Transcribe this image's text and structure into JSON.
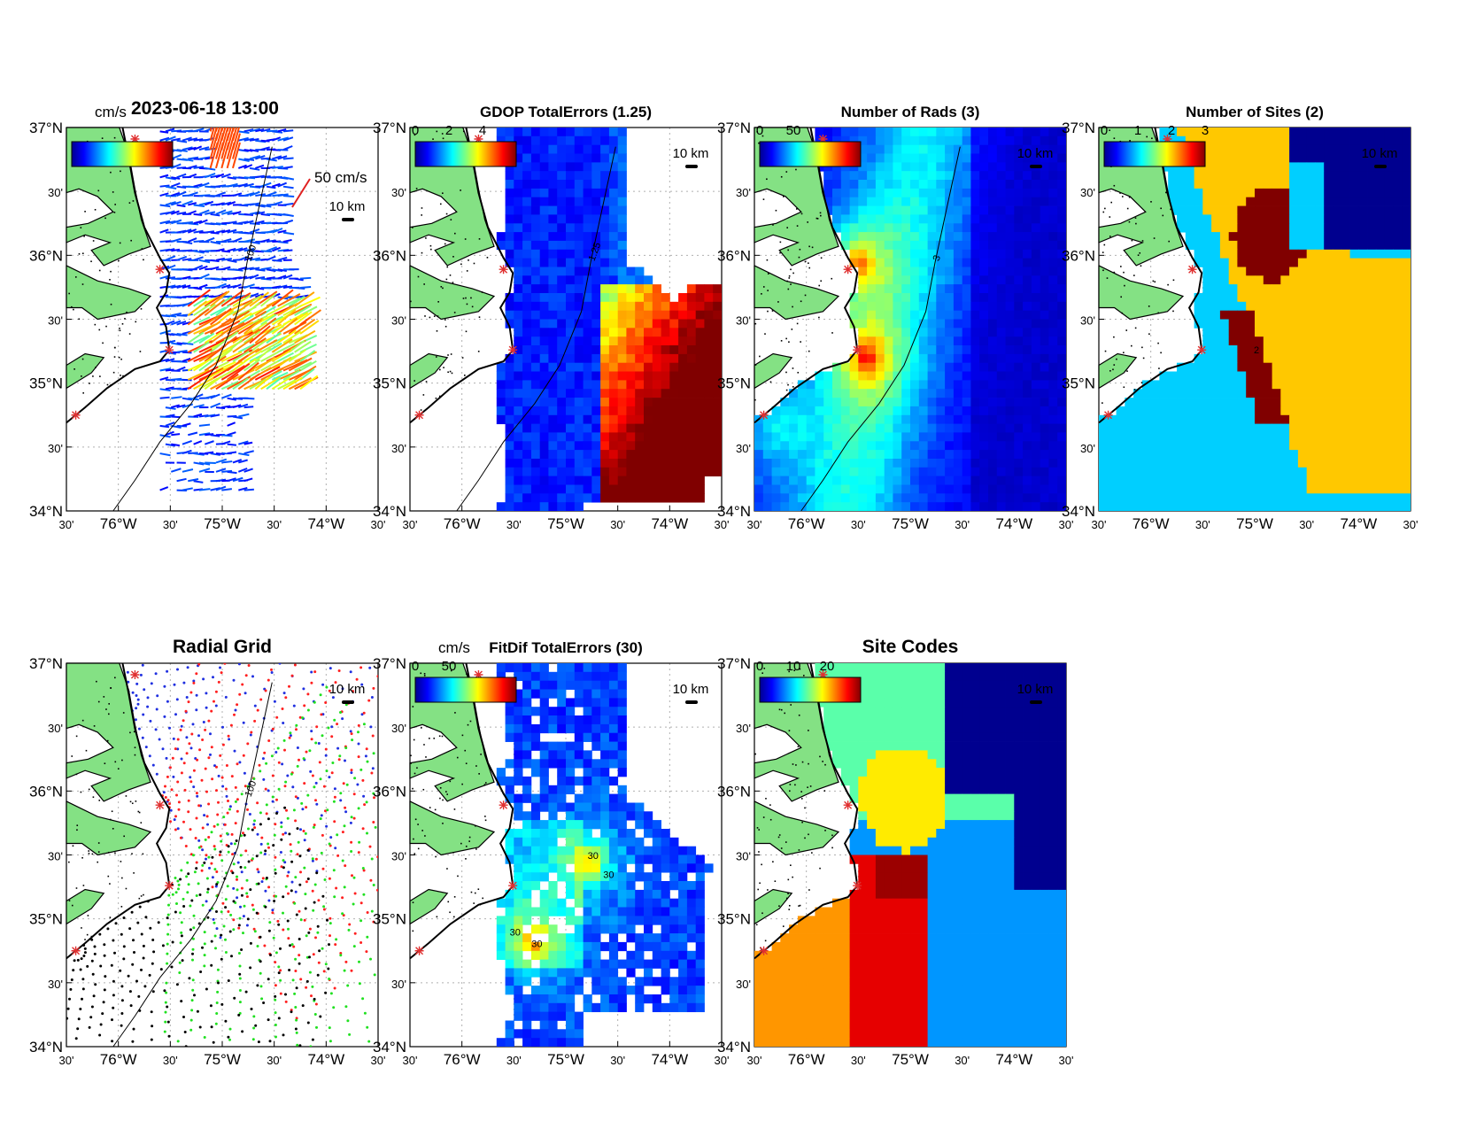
{
  "figure": {
    "timestamp": "2023-06-18 13:00",
    "colors": {
      "land": "#84e184",
      "frame": "#000000",
      "grid": "#b0b0b0",
      "site_marker": "#e03030"
    }
  },
  "common": {
    "lat_ticks": [
      "37°N",
      "30'",
      "36°N",
      "30'",
      "35°N",
      "30'",
      "34°N"
    ],
    "lon_ticks": [
      "30'",
      "76°W",
      "30'",
      "75°W",
      "30'",
      "74°W",
      "30'"
    ],
    "scale_label": "10 km"
  },
  "panels": [
    {
      "id": "vectors",
      "title": "",
      "colorbar_unit": "cm/s",
      "colorbar_ticks": [],
      "legend_vector_label": "50 cm/s",
      "contour_labels": [
        "100"
      ]
    },
    {
      "id": "gdop",
      "title": "GDOP TotalErrors (1.25)",
      "colorbar_unit": "",
      "colorbar_ticks": [
        "0",
        "2",
        "4"
      ],
      "contour_labels": [
        "1.25"
      ]
    },
    {
      "id": "nrads",
      "title": "Number of Rads (3)",
      "colorbar_unit": "",
      "colorbar_ticks": [
        "0",
        "50"
      ],
      "contour_labels": [
        "3"
      ]
    },
    {
      "id": "nsites",
      "title": "Number of Sites (2)",
      "colorbar_unit": "",
      "colorbar_ticks": [
        "0",
        "1",
        "2",
        "3"
      ],
      "contour_labels": [
        "2"
      ]
    },
    {
      "id": "radgrid",
      "title": "Radial Grid",
      "colorbar_unit": "",
      "colorbar_ticks": [],
      "contour_labels": [
        "100",
        "100"
      ]
    },
    {
      "id": "fitdif",
      "title": "FitDif TotalErrors (30)",
      "colorbar_unit": "cm/s",
      "colorbar_ticks": [
        "0",
        "50"
      ],
      "contour_labels": [
        "30",
        "30",
        "30",
        "30"
      ]
    },
    {
      "id": "sitecodes",
      "title": "Site Codes",
      "colorbar_unit": "",
      "colorbar_ticks": [
        "0",
        "10",
        "20"
      ],
      "contour_labels": []
    }
  ]
}
